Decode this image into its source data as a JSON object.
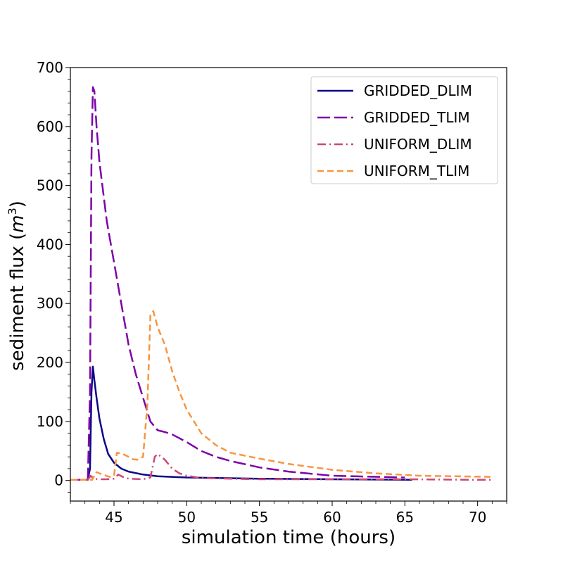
{
  "chart_data": {
    "type": "line",
    "title": "",
    "xlabel": "simulation time (hours)",
    "ylabel": "sediment flux",
    "ylabel_unit_base": "m",
    "ylabel_unit_exp": "3",
    "xlim": [
      42,
      72
    ],
    "ylim": [
      -35,
      700
    ],
    "x_ticks": [
      45,
      50,
      55,
      60,
      65,
      70
    ],
    "y_ticks": [
      0,
      100,
      200,
      300,
      400,
      500,
      600,
      700
    ],
    "x_tick_labels": [
      "45",
      "50",
      "55",
      "60",
      "65",
      "70"
    ],
    "y_tick_labels": [
      "0",
      "100",
      "200",
      "300",
      "400",
      "500",
      "600",
      "700"
    ],
    "legend_position": "top-right",
    "series": [
      {
        "name": "GRIDDED_DLIM",
        "color": "#0d0887",
        "style": "solid",
        "x": [
          42,
          43.2,
          43.35,
          43.45,
          43.55,
          43.65,
          43.8,
          44.0,
          44.3,
          44.6,
          45.0,
          45.5,
          46.0,
          47.0,
          48.0,
          50.0,
          55.0,
          60.0,
          65.5
        ],
        "y": [
          1,
          1,
          20,
          150,
          193,
          170,
          140,
          105,
          70,
          45,
          30,
          20,
          15,
          10,
          7,
          5,
          3,
          2,
          1
        ]
      },
      {
        "name": "GRIDDED_TLIM",
        "color": "#7e03a8",
        "style": "dashdash",
        "x": [
          42,
          43.2,
          43.35,
          43.45,
          43.55,
          43.65,
          43.8,
          44.0,
          44.5,
          45.0,
          45.5,
          46.0,
          46.5,
          47.0,
          47.5,
          48.0,
          48.5,
          49.0,
          50.0,
          51.0,
          52.0,
          53.0,
          55.0,
          57.0,
          60.0,
          65.0
        ],
        "y": [
          1,
          1,
          150,
          550,
          667,
          660,
          600,
          540,
          440,
          370,
          300,
          230,
          180,
          140,
          100,
          85,
          82,
          78,
          65,
          50,
          40,
          33,
          22,
          15,
          8,
          5
        ]
      },
      {
        "name": "UNIFORM_DLIM",
        "color": "#cc4778",
        "style": "dashdot",
        "x": [
          42,
          43.2,
          43.4,
          43.6,
          44.0,
          44.5,
          45.0,
          45.3,
          45.6,
          46.0,
          47.0,
          47.5,
          47.8,
          48.0,
          48.5,
          49.0,
          49.5,
          50.0,
          51.0,
          53.0,
          55.0,
          60.0,
          65.0,
          70.0,
          71.0
        ],
        "y": [
          1,
          1,
          8,
          3,
          2,
          2,
          3,
          10,
          6,
          3,
          2,
          5,
          40,
          45,
          35,
          20,
          12,
          8,
          4,
          3,
          2,
          2,
          2,
          1,
          1
        ]
      },
      {
        "name": "UNIFORM_TLIM",
        "color": "#f89540",
        "style": "dashed",
        "x": [
          42,
          43.5,
          43.8,
          44.2,
          44.7,
          45.0,
          45.2,
          45.6,
          46.0,
          46.3,
          46.6,
          47.0,
          47.3,
          47.5,
          47.7,
          48.0,
          48.5,
          49.0,
          49.5,
          50.0,
          51.0,
          52.0,
          53.0,
          55.0,
          57.0,
          60.0,
          63.0,
          66.0,
          71.0
        ],
        "y": [
          1,
          1,
          14,
          10,
          6,
          8,
          47,
          45,
          40,
          36,
          35,
          40,
          130,
          280,
          287,
          260,
          230,
          185,
          150,
          120,
          80,
          60,
          47,
          37,
          28,
          18,
          12,
          8,
          6
        ]
      }
    ]
  }
}
